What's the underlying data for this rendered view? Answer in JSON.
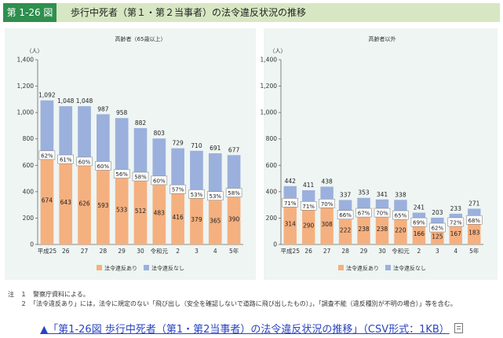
{
  "header": {
    "figure_number": "第 1-26 図",
    "title": "歩行中死者（第１・第２当事者）の法令違反状況の推移"
  },
  "colors": {
    "violation": "#f5b07f",
    "no_violation": "#9bb0dc",
    "header_bg": "#d7e7c3",
    "tag_bg": "#2f8f4e",
    "panel_bg": "#eef5f3"
  },
  "chart_data": [
    {
      "type": "bar",
      "stacked": true,
      "title": "高齢者（65歳以上）",
      "ylabel": "（人）",
      "ylim": [
        0,
        1400
      ],
      "yticks": [
        "0",
        "200",
        "400",
        "600",
        "800",
        "1,000",
        "1,200",
        "1,400"
      ],
      "categories": [
        "平成25",
        "26",
        "27",
        "28",
        "29",
        "30",
        "令和元",
        "2",
        "3",
        "4",
        "5年"
      ],
      "series": [
        {
          "name": "法令違反あり",
          "values": [
            674,
            643,
            626,
            593,
            533,
            512,
            483,
            416,
            379,
            365,
            390
          ]
        },
        {
          "name": "法令違反なし",
          "values": [
            418,
            405,
            422,
            394,
            425,
            370,
            320,
            313,
            331,
            326,
            287
          ]
        }
      ],
      "totals": [
        "1,092",
        "1,048",
        "1,048",
        "987",
        "958",
        "882",
        "803",
        "729",
        "710",
        "691",
        "677"
      ],
      "shares": [
        "62%",
        "61%",
        "60%",
        "60%",
        "56%",
        "58%",
        "60%",
        "57%",
        "53%",
        "53%",
        "58%"
      ],
      "legend": [
        "法令違反あり",
        "法令違反なし"
      ],
      "legend_position": "bottom",
      "grid": false
    },
    {
      "type": "bar",
      "stacked": true,
      "title": "高齢者以外",
      "ylabel": "（人）",
      "ylim": [
        0,
        1400
      ],
      "yticks": [
        "0",
        "200",
        "400",
        "600",
        "800",
        "1,000",
        "1,200",
        "1,400"
      ],
      "categories": [
        "平成25",
        "26",
        "27",
        "28",
        "29",
        "30",
        "令和元",
        "2",
        "3",
        "4",
        "5年"
      ],
      "series": [
        {
          "name": "法令違反あり",
          "values": [
            314,
            290,
            308,
            222,
            238,
            238,
            220,
            166,
            125,
            167,
            183
          ]
        },
        {
          "name": "法令違反なし",
          "values": [
            128,
            121,
            130,
            115,
            115,
            103,
            118,
            75,
            78,
            66,
            88
          ]
        }
      ],
      "totals": [
        "442",
        "411",
        "438",
        "337",
        "353",
        "341",
        "338",
        "241",
        "203",
        "233",
        "271"
      ],
      "shares": [
        "71%",
        "71%",
        "70%",
        "66%",
        "67%",
        "70%",
        "65%",
        "69%",
        "62%",
        "72%",
        "68%"
      ],
      "legend": [
        "法令違反あり",
        "法令違反なし"
      ],
      "legend_position": "bottom",
      "grid": false
    }
  ],
  "notes": [
    "注　１　警察庁資料による。",
    "　　２　「法令違反あり」には，法令に規定のない「飛び出し（安全を確認しないで道路に飛び出したもの）」，「調査不能（違反種別が不明の場合）」等を含む。"
  ],
  "link": {
    "text": "▲「第1-26図 歩行中死者（第1・第2当事者）の法令違反状況の推移」（CSV形式：1KB）"
  }
}
